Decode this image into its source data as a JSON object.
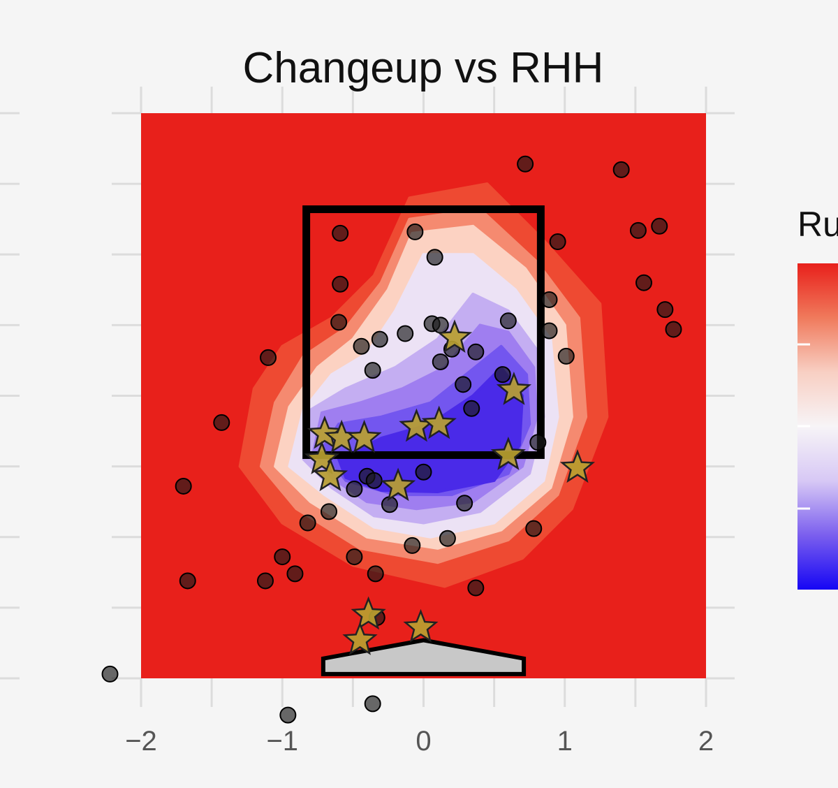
{
  "chart_data": {
    "type": "scatter",
    "title": "Changeup vs RHH",
    "legend_title": "Ru",
    "xlim": [
      -2,
      2
    ],
    "ylim": [
      0,
      4
    ],
    "x_ticks": [
      -2,
      -1,
      0,
      1,
      2
    ],
    "x_tick_labels": [
      "−2",
      "−1",
      "0",
      "1",
      "2"
    ],
    "grid": true,
    "legend_position": "right",
    "colors": {
      "background_low": "#e8201b",
      "contour_high": "#3a1ee8",
      "strike_zone": "#000000",
      "star": "#b8a030",
      "plate": "#c8c8c8"
    },
    "strike_zone": {
      "x": [
        -0.83,
        0.83
      ],
      "y": [
        1.58,
        3.32
      ]
    },
    "contours": [
      {
        "level": 1,
        "color": "#ee4a32",
        "points": [
          [
            -1.3,
            1.5
          ],
          [
            -1.2,
            2.05
          ],
          [
            -1.0,
            2.35
          ],
          [
            -0.65,
            2.55
          ],
          [
            -0.35,
            2.85
          ],
          [
            -0.1,
            3.4
          ],
          [
            0.45,
            3.5
          ],
          [
            0.85,
            3.1
          ],
          [
            1.25,
            2.65
          ],
          [
            1.3,
            1.85
          ],
          [
            1.05,
            1.2
          ],
          [
            0.7,
            0.85
          ],
          [
            0.15,
            0.65
          ],
          [
            -0.5,
            0.8
          ],
          [
            -1.0,
            1.1
          ]
        ]
      },
      {
        "level": 2,
        "color": "#f58a70",
        "points": [
          [
            -1.15,
            1.5
          ],
          [
            -1.05,
            1.95
          ],
          [
            -0.85,
            2.28
          ],
          [
            -0.55,
            2.48
          ],
          [
            -0.3,
            2.8
          ],
          [
            -0.1,
            3.25
          ],
          [
            0.4,
            3.32
          ],
          [
            0.8,
            2.95
          ],
          [
            1.1,
            2.55
          ],
          [
            1.15,
            1.85
          ],
          [
            0.95,
            1.3
          ],
          [
            0.6,
            0.98
          ],
          [
            0.1,
            0.82
          ],
          [
            -0.45,
            0.92
          ],
          [
            -0.9,
            1.2
          ]
        ]
      },
      {
        "level": 3,
        "color": "#fcd2c2",
        "points": [
          [
            -1.05,
            1.5
          ],
          [
            -0.95,
            1.92
          ],
          [
            -0.75,
            2.2
          ],
          [
            -0.5,
            2.4
          ],
          [
            -0.25,
            2.75
          ],
          [
            -0.08,
            3.15
          ],
          [
            0.35,
            3.2
          ],
          [
            0.72,
            2.9
          ],
          [
            1.0,
            2.5
          ],
          [
            1.05,
            1.85
          ],
          [
            0.9,
            1.35
          ],
          [
            0.55,
            1.05
          ],
          [
            0.1,
            0.92
          ],
          [
            -0.4,
            1.0
          ],
          [
            -0.8,
            1.25
          ]
        ]
      },
      {
        "level": 4,
        "color": "#ece2f5",
        "points": [
          [
            -0.95,
            1.5
          ],
          [
            -0.85,
            1.9
          ],
          [
            -0.65,
            2.15
          ],
          [
            -0.4,
            2.3
          ],
          [
            -0.2,
            2.6
          ],
          [
            0.0,
            3.0
          ],
          [
            0.35,
            3.0
          ],
          [
            0.65,
            2.75
          ],
          [
            0.9,
            2.4
          ],
          [
            0.95,
            1.85
          ],
          [
            0.85,
            1.4
          ],
          [
            0.5,
            1.1
          ],
          [
            0.05,
            1.0
          ],
          [
            -0.35,
            1.07
          ],
          [
            -0.7,
            1.3
          ]
        ]
      },
      {
        "level": 5,
        "color": "#c4aef2",
        "points": [
          [
            -0.85,
            1.55
          ],
          [
            -0.8,
            1.9
          ],
          [
            -0.55,
            2.05
          ],
          [
            -0.2,
            2.2
          ],
          [
            0.1,
            2.4
          ],
          [
            0.35,
            2.72
          ],
          [
            0.6,
            2.6
          ],
          [
            0.82,
            2.3
          ],
          [
            0.85,
            1.85
          ],
          [
            0.75,
            1.45
          ],
          [
            0.4,
            1.18
          ],
          [
            0.0,
            1.1
          ],
          [
            -0.35,
            1.15
          ],
          [
            -0.65,
            1.35
          ]
        ]
      },
      {
        "level": 6,
        "color": "#9f7ef0",
        "points": [
          [
            -0.78,
            1.6
          ],
          [
            -0.72,
            1.88
          ],
          [
            -0.45,
            1.95
          ],
          [
            -0.15,
            2.05
          ],
          [
            0.15,
            2.2
          ],
          [
            0.4,
            2.5
          ],
          [
            0.6,
            2.45
          ],
          [
            0.78,
            2.2
          ],
          [
            0.8,
            1.85
          ],
          [
            0.7,
            1.5
          ],
          [
            0.35,
            1.25
          ],
          [
            -0.05,
            1.2
          ],
          [
            -0.4,
            1.25
          ],
          [
            -0.65,
            1.42
          ]
        ]
      },
      {
        "level": 7,
        "color": "#7356ef",
        "points": [
          [
            -0.72,
            1.62
          ],
          [
            -0.6,
            1.8
          ],
          [
            -0.3,
            1.85
          ],
          [
            0.05,
            1.95
          ],
          [
            0.3,
            2.15
          ],
          [
            0.55,
            2.35
          ],
          [
            0.73,
            2.15
          ],
          [
            0.75,
            1.8
          ],
          [
            0.6,
            1.45
          ],
          [
            0.2,
            1.3
          ],
          [
            -0.2,
            1.3
          ],
          [
            -0.55,
            1.4
          ]
        ]
      },
      {
        "level": 8,
        "color": "#4a2ae8",
        "points": [
          [
            -0.6,
            1.55
          ],
          [
            -0.3,
            1.7
          ],
          [
            0.05,
            1.8
          ],
          [
            0.35,
            2.0
          ],
          [
            0.55,
            2.2
          ],
          [
            0.7,
            2.0
          ],
          [
            0.68,
            1.65
          ],
          [
            0.5,
            1.4
          ],
          [
            0.1,
            1.32
          ],
          [
            -0.3,
            1.33
          ],
          [
            -0.55,
            1.42
          ]
        ]
      }
    ],
    "circles": [
      {
        "x": 0.72,
        "y": 3.64
      },
      {
        "x": 1.4,
        "y": 3.6
      },
      {
        "x": 1.52,
        "y": 3.17
      },
      {
        "x": 1.67,
        "y": 3.2
      },
      {
        "x": -0.59,
        "y": 3.15
      },
      {
        "x": -0.06,
        "y": 3.16
      },
      {
        "x": 0.95,
        "y": 3.09
      },
      {
        "x": 0.08,
        "y": 2.98
      },
      {
        "x": -0.59,
        "y": 2.79
      },
      {
        "x": 1.56,
        "y": 2.8
      },
      {
        "x": 0.89,
        "y": 2.68
      },
      {
        "x": 1.71,
        "y": 2.61
      },
      {
        "x": 1.77,
        "y": 2.47
      },
      {
        "x": -0.6,
        "y": 2.52
      },
      {
        "x": 0.06,
        "y": 2.51
      },
      {
        "x": 0.12,
        "y": 2.5
      },
      {
        "x": 0.6,
        "y": 2.53
      },
      {
        "x": 0.89,
        "y": 2.46
      },
      {
        "x": -0.13,
        "y": 2.44
      },
      {
        "x": -0.31,
        "y": 2.4
      },
      {
        "x": -0.44,
        "y": 2.35
      },
      {
        "x": 0.2,
        "y": 2.33
      },
      {
        "x": 0.37,
        "y": 2.31
      },
      {
        "x": 1.01,
        "y": 2.28
      },
      {
        "x": 0.12,
        "y": 2.24
      },
      {
        "x": -1.1,
        "y": 2.27
      },
      {
        "x": -0.36,
        "y": 2.18
      },
      {
        "x": 0.56,
        "y": 2.15
      },
      {
        "x": 0.28,
        "y": 2.08
      },
      {
        "x": 0.34,
        "y": 1.91
      },
      {
        "x": -1.43,
        "y": 1.81
      },
      {
        "x": 0.81,
        "y": 1.67
      },
      {
        "x": 0.0,
        "y": 1.46
      },
      {
        "x": -0.4,
        "y": 1.43
      },
      {
        "x": -0.35,
        "y": 1.4
      },
      {
        "x": -1.7,
        "y": 1.36
      },
      {
        "x": -0.49,
        "y": 1.34
      },
      {
        "x": -0.24,
        "y": 1.23
      },
      {
        "x": 0.29,
        "y": 1.24
      },
      {
        "x": -0.67,
        "y": 1.18
      },
      {
        "x": -0.82,
        "y": 1.1
      },
      {
        "x": 0.78,
        "y": 1.06
      },
      {
        "x": 0.17,
        "y": 0.99
      },
      {
        "x": -0.08,
        "y": 0.94
      },
      {
        "x": -1.0,
        "y": 0.86
      },
      {
        "x": -0.49,
        "y": 0.86
      },
      {
        "x": -0.91,
        "y": 0.74
      },
      {
        "x": -0.34,
        "y": 0.74
      },
      {
        "x": -1.67,
        "y": 0.69
      },
      {
        "x": -1.12,
        "y": 0.69
      },
      {
        "x": 0.37,
        "y": 0.64
      },
      {
        "x": -0.33,
        "y": 0.43
      },
      {
        "x": -0.36,
        "y": -0.18
      },
      {
        "x": -0.96,
        "y": -0.26
      },
      {
        "x": -2.22,
        "y": 0.03
      }
    ],
    "stars": [
      {
        "x": 0.22,
        "y": 2.41
      },
      {
        "x": 0.64,
        "y": 2.04
      },
      {
        "x": -0.05,
        "y": 1.78
      },
      {
        "x": 0.11,
        "y": 1.8
      },
      {
        "x": -0.7,
        "y": 1.73
      },
      {
        "x": -0.58,
        "y": 1.7
      },
      {
        "x": -0.42,
        "y": 1.7
      },
      {
        "x": 0.6,
        "y": 1.58
      },
      {
        "x": -0.72,
        "y": 1.55
      },
      {
        "x": -0.66,
        "y": 1.43
      },
      {
        "x": -0.18,
        "y": 1.36
      },
      {
        "x": 1.09,
        "y": 1.49
      },
      {
        "x": -0.39,
        "y": 0.45
      },
      {
        "x": -0.45,
        "y": 0.27
      },
      {
        "x": -0.02,
        "y": 0.36
      }
    ],
    "plate": [
      [
        -0.71,
        0.03
      ],
      [
        0.71,
        0.03
      ],
      [
        0.71,
        0.14
      ],
      [
        0.0,
        0.27
      ],
      [
        -0.71,
        0.14
      ]
    ],
    "legend_colorbar_colors": [
      "#e8201b",
      "#f07a5c",
      "#f8cfc3",
      "#f7f4f7",
      "#d7c8f5",
      "#7b5fee",
      "#1606f4"
    ]
  }
}
